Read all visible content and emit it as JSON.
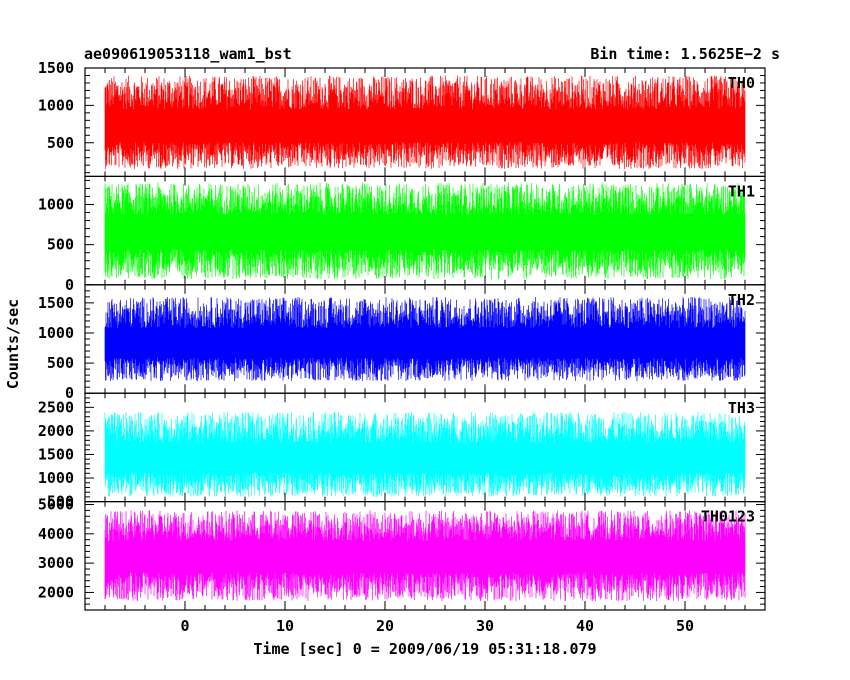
{
  "title_left": "ae090619053118_wam1_bst",
  "title_right": "Bin time: 1.5625E−2 s",
  "ylabel": "Counts/sec",
  "xlabel": "Time [sec] 0 = 2009/06/19 05:31:18.079",
  "chart_data": [
    {
      "type": "line",
      "name": "TH0",
      "color": "#ff0000",
      "x_range": [
        -8,
        56
      ],
      "ylim": [
        50,
        1500
      ],
      "yticks": [
        500,
        1000,
        1500
      ],
      "baseline": 700,
      "amp_low": 550,
      "amp_high": 700
    },
    {
      "type": "line",
      "name": "TH1",
      "color": "#00ff00",
      "x_range": [
        -8,
        56
      ],
      "ylim": [
        0,
        1350
      ],
      "yticks": [
        0,
        500,
        1000
      ],
      "baseline": 650,
      "amp_low": 580,
      "amp_high": 620
    },
    {
      "type": "line",
      "name": "TH2",
      "color": "#0000ff",
      "x_range": [
        -8,
        56
      ],
      "ylim": [
        0,
        1800
      ],
      "yticks": [
        0,
        500,
        1000,
        1500
      ],
      "baseline": 800,
      "amp_low": 600,
      "amp_high": 800
    },
    {
      "type": "line",
      "name": "TH3",
      "color": "#00ffff",
      "x_range": [
        -8,
        56
      ],
      "ylim": [
        500,
        2800
      ],
      "yticks": [
        500,
        1000,
        1500,
        2000,
        2500
      ],
      "baseline": 1400,
      "amp_low": 800,
      "amp_high": 1000
    },
    {
      "type": "line",
      "name": "TH0123",
      "color": "#ff00ff",
      "x_range": [
        -8,
        56
      ],
      "ylim": [
        1400,
        5100
      ],
      "yticks": [
        2000,
        3000,
        4000,
        5000
      ],
      "baseline": 3200,
      "amp_low": 1500,
      "amp_high": 1600
    }
  ],
  "xaxis": {
    "xlim": [
      -10,
      58
    ],
    "ticks": [
      0,
      10,
      20,
      30,
      40,
      50
    ]
  }
}
